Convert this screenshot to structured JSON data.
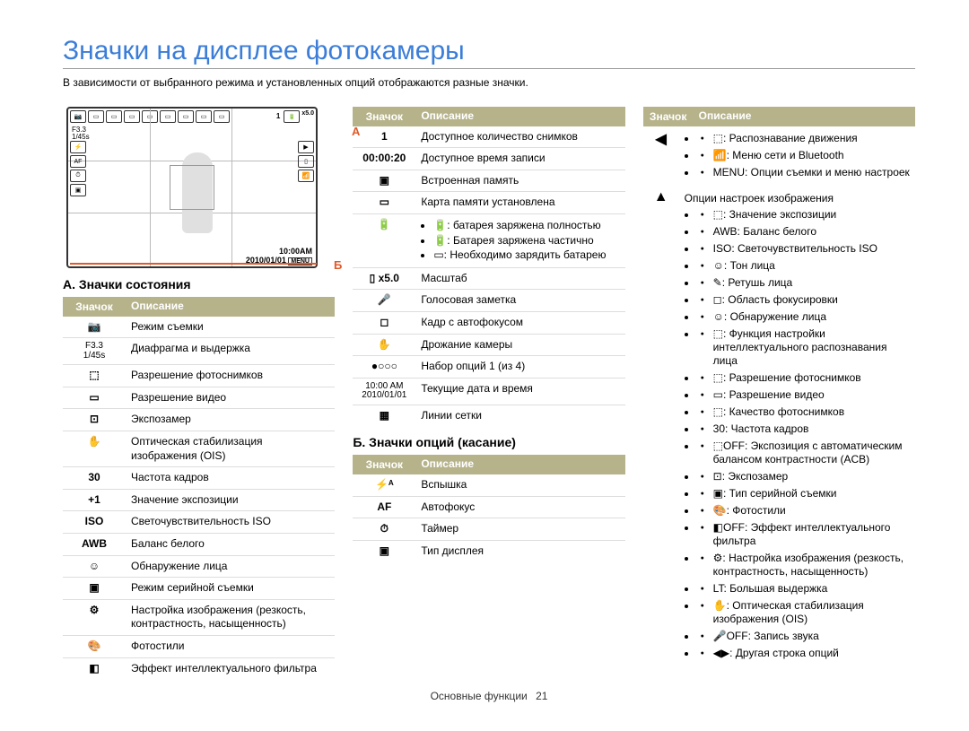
{
  "title": "Значки на дисплее фотокамеры",
  "subtitle": "В зависимости от выбранного режима и установленных опций отображаются разные значки.",
  "labels": {
    "A_marker": "А",
    "B_marker": "Б"
  },
  "display": {
    "aperture": "F3.3",
    "shutter": "1/45s",
    "time": "10:00AM",
    "date": "2010/01/01",
    "zoom": "x5.0",
    "counter": "1",
    "menu": "MENU"
  },
  "sectionA": {
    "title": "А. Значки состояния",
    "columns": {
      "icon": "Значок",
      "desc": "Описание"
    },
    "rows": [
      {
        "icon_text": "📷",
        "desc": "Режим съемки"
      },
      {
        "icon_text": "F3.3\n1/45s",
        "desc": "Диафрагма и выдержка"
      },
      {
        "icon_text": "⬚",
        "desc": "Разрешение фотоснимков"
      },
      {
        "icon_text": "▭",
        "desc": "Разрешение видео"
      },
      {
        "icon_text": "⊡",
        "desc": "Экспозамер"
      },
      {
        "icon_text": "✋",
        "desc": "Оптическая стабилизация изображения (OIS)"
      },
      {
        "icon_text": "30",
        "desc": "Частота кадров"
      },
      {
        "icon_text": "+1",
        "desc": "Значение экспозиции"
      },
      {
        "icon_text": "ISO",
        "desc": "Светочувствительность ISO"
      },
      {
        "icon_text": "AWB",
        "desc": "Баланс белого"
      },
      {
        "icon_text": "☺",
        "desc": "Обнаружение лица"
      },
      {
        "icon_text": "▣",
        "desc": "Режим серийной съемки"
      },
      {
        "icon_text": "⚙",
        "desc": "Настройка изображения (резкость, контрастность, насыщенность)"
      },
      {
        "icon_text": "🎨",
        "desc": "Фотостили"
      },
      {
        "icon_text": "◧",
        "desc": "Эффект интеллектуального фильтра"
      }
    ]
  },
  "sectionA_cont": {
    "columns": {
      "icon": "Значок",
      "desc": "Описание"
    },
    "rows": [
      {
        "icon_text": "1",
        "desc": "Доступное количество снимков"
      },
      {
        "icon_text": "00:00:20",
        "desc": "Доступное время записи"
      },
      {
        "icon_text": "▣",
        "desc": "Встроенная память"
      },
      {
        "icon_text": "▭",
        "desc": "Карта памяти установлена"
      },
      {
        "icon_text": "🔋",
        "desc_list": [
          "🔋: батарея заряжена полностью",
          "🔋: Батарея заряжена частично",
          "▭: Необходимо зарядить батарею"
        ]
      },
      {
        "icon_text": "▯ x5.0",
        "desc": "Масштаб"
      },
      {
        "icon_text": "🎤",
        "desc": "Голосовая заметка"
      },
      {
        "icon_text": "◻",
        "desc": "Кадр с автофокусом"
      },
      {
        "icon_text": "✋",
        "desc": "Дрожание камеры"
      },
      {
        "icon_text": "●○○○",
        "desc": "Набор опций 1 (из 4)"
      },
      {
        "icon_text": "10:00 AM\n2010/01/01",
        "desc": "Текущие дата и время"
      },
      {
        "icon_text": "▦",
        "desc": "Линии сетки"
      }
    ]
  },
  "sectionB": {
    "title": "Б. Значки опций (касание)",
    "columns": {
      "icon": "Значок",
      "desc": "Описание"
    },
    "rows": [
      {
        "icon_text": "⚡ᴬ",
        "desc": "Вспышка"
      },
      {
        "icon_text": "AF",
        "desc": "Автофокус"
      },
      {
        "icon_text": "⏱",
        "desc": "Таймер"
      },
      {
        "icon_text": "▣",
        "desc": "Тип дисплея"
      }
    ]
  },
  "sectionB_right": {
    "columns": {
      "icon": "Значок",
      "desc": "Описание"
    },
    "groups": [
      {
        "arrow": "◀",
        "items": [
          "⬚: Распознавание движения",
          "📶: Меню сети и Bluetooth",
          "MENU: Опции съемки и меню настроек"
        ]
      },
      {
        "arrow": "▲",
        "lead": "Опции настроек изображения",
        "items": [
          "⬚: Значение экспозиции",
          "AWB: Баланс белого",
          "ISO: Светочувствительность ISO",
          "☺: Тон лица",
          "✎: Ретушь лица",
          "◻: Область фокусировки",
          "☺: Обнаружение лица",
          "⬚: Функция настройки интеллектуального распознавания лица",
          "⬚: Разрешение фотоснимков",
          "▭: Разрешение видео",
          "⬚: Качество фотоснимков",
          "30: Частота кадров",
          "⬚OFF: Экспозиция с автоматическим балансом контрастности (ACB)",
          "⊡: Экспозамер",
          "▣: Тип серийной съемки",
          "🎨: Фотостили",
          "◧OFF: Эффект интеллектуального фильтра",
          "⚙: Настройка изображения (резкость, контрастность, насыщенность)",
          "LT: Большая выдержка",
          "✋: Оптическая стабилизация изображения (OIS)",
          "🎤OFF: Запись звука",
          "◀▶: Другая строка опций"
        ]
      }
    ]
  },
  "footer": {
    "text": "Основные функции",
    "page": "21"
  },
  "colors": {
    "title_color": "#3b7dd8",
    "header_bg": "#b6b38b",
    "accent_orange": "#e05a2b",
    "divider": "#dddddd"
  }
}
